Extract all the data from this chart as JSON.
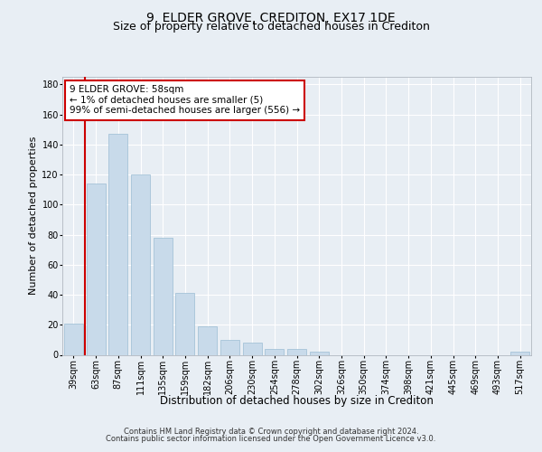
{
  "title": "9, ELDER GROVE, CREDITON, EX17 1DE",
  "subtitle": "Size of property relative to detached houses in Crediton",
  "xlabel": "Distribution of detached houses by size in Crediton",
  "ylabel": "Number of detached properties",
  "categories": [
    "39sqm",
    "63sqm",
    "87sqm",
    "111sqm",
    "135sqm",
    "159sqm",
    "182sqm",
    "206sqm",
    "230sqm",
    "254sqm",
    "278sqm",
    "302sqm",
    "326sqm",
    "350sqm",
    "374sqm",
    "398sqm",
    "421sqm",
    "445sqm",
    "469sqm",
    "493sqm",
    "517sqm"
  ],
  "values": [
    21,
    114,
    147,
    120,
    78,
    41,
    19,
    10,
    8,
    4,
    4,
    2,
    0,
    0,
    0,
    0,
    0,
    0,
    0,
    0,
    2
  ],
  "bar_color": "#c8daea",
  "bar_edge_color": "#9bbdd4",
  "property_line_color": "#cc0000",
  "annotation_text": "9 ELDER GROVE: 58sqm\n← 1% of detached houses are smaller (5)\n99% of semi-detached houses are larger (556) →",
  "annotation_box_color": "#cc0000",
  "ylim": [
    0,
    185
  ],
  "yticks": [
    0,
    20,
    40,
    60,
    80,
    100,
    120,
    140,
    160,
    180
  ],
  "footer_line1": "Contains HM Land Registry data © Crown copyright and database right 2024.",
  "footer_line2": "Contains public sector information licensed under the Open Government Licence v3.0.",
  "fig_bg_color": "#e8eef4",
  "axes_bg_color": "#e8eef4",
  "grid_color": "#ffffff",
  "title_fontsize": 10,
  "subtitle_fontsize": 9,
  "tick_fontsize": 7,
  "ylabel_fontsize": 8,
  "xlabel_fontsize": 8.5,
  "footer_fontsize": 6,
  "annotation_fontsize": 7.5
}
